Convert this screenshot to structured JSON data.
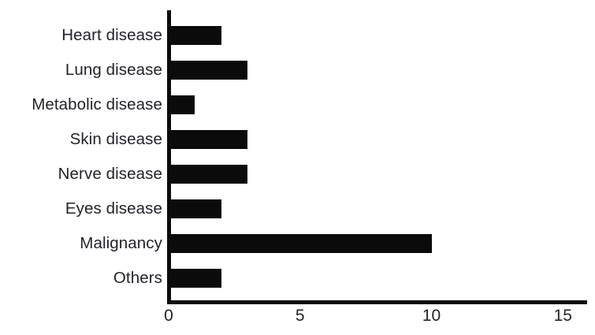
{
  "chart_data": {
    "type": "bar",
    "orientation": "horizontal",
    "title": "",
    "xlabel": "",
    "ylabel": "",
    "categories": [
      "Heart disease",
      "Lung disease",
      "Metabolic disease",
      "Skin disease",
      "Nerve disease",
      "Eyes disease",
      "Malignancy",
      "Others"
    ],
    "values": [
      2,
      3,
      1,
      3,
      3,
      2,
      10,
      2
    ],
    "xticks": [
      "0",
      "5",
      "10",
      "15"
    ],
    "xtick_values": [
      0,
      5,
      10,
      15
    ],
    "xlim": [
      0,
      15.9
    ],
    "grid": false,
    "legend": false,
    "bar_color": "#0b0b0b",
    "axis_color": "#0b0b0b",
    "text_color": "#232329",
    "background_color": "#ffffff"
  }
}
